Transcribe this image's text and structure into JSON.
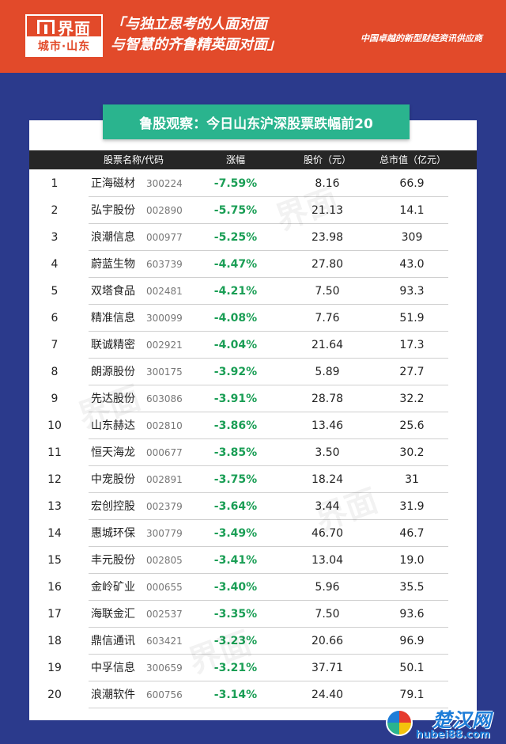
{
  "header": {
    "logo_name": "界面",
    "logo_sub": "城市·山东",
    "slogan_line1": "「与独立思考的人面对面",
    "slogan_line2": "与智慧的齐鲁精英面对面」",
    "tagline": "中国卓越的新型财经资讯供应商"
  },
  "title": "鲁股观察：今日山东沪深股票跌幅前20",
  "columns": {
    "name": "股票名称/代码",
    "change": "涨幅",
    "price": "股价（元）",
    "market_cap": "总市值（亿元）"
  },
  "rows": [
    {
      "rank": "1",
      "name": "正海磁材",
      "code": "300224",
      "change": "-7.59%",
      "price": "8.16",
      "cap": "66.9"
    },
    {
      "rank": "2",
      "name": "弘宇股份",
      "code": "002890",
      "change": "-5.75%",
      "price": "21.13",
      "cap": "14.1"
    },
    {
      "rank": "3",
      "name": "浪潮信息",
      "code": "000977",
      "change": "-5.25%",
      "price": "23.98",
      "cap": "309"
    },
    {
      "rank": "4",
      "name": "蔚蓝生物",
      "code": "603739",
      "change": "-4.47%",
      "price": "27.80",
      "cap": "43.0"
    },
    {
      "rank": "5",
      "name": "双塔食品",
      "code": "002481",
      "change": "-4.21%",
      "price": "7.50",
      "cap": "93.3"
    },
    {
      "rank": "6",
      "name": "精准信息",
      "code": "300099",
      "change": "-4.08%",
      "price": "7.76",
      "cap": "51.9"
    },
    {
      "rank": "7",
      "name": "联诚精密",
      "code": "002921",
      "change": "-4.04%",
      "price": "21.64",
      "cap": "17.3"
    },
    {
      "rank": "8",
      "name": "朗源股份",
      "code": "300175",
      "change": "-3.92%",
      "price": "5.89",
      "cap": "27.7"
    },
    {
      "rank": "9",
      "name": "先达股份",
      "code": "603086",
      "change": "-3.91%",
      "price": "28.78",
      "cap": "32.2"
    },
    {
      "rank": "10",
      "name": "山东赫达",
      "code": "002810",
      "change": "-3.86%",
      "price": "13.46",
      "cap": "25.6"
    },
    {
      "rank": "11",
      "name": "恒天海龙",
      "code": "000677",
      "change": "-3.85%",
      "price": "3.50",
      "cap": "30.2"
    },
    {
      "rank": "12",
      "name": "中宠股份",
      "code": "002891",
      "change": "-3.75%",
      "price": "18.24",
      "cap": "31"
    },
    {
      "rank": "13",
      "name": "宏创控股",
      "code": "002379",
      "change": "-3.64%",
      "price": "3.44",
      "cap": "31.9"
    },
    {
      "rank": "14",
      "name": "惠城环保",
      "code": "300779",
      "change": "-3.49%",
      "price": "46.70",
      "cap": "46.7"
    },
    {
      "rank": "15",
      "name": "丰元股份",
      "code": "002805",
      "change": "-3.41%",
      "price": "13.04",
      "cap": "19.0"
    },
    {
      "rank": "16",
      "name": "金岭矿业",
      "code": "000655",
      "change": "-3.40%",
      "price": "5.96",
      "cap": "35.5"
    },
    {
      "rank": "17",
      "name": "海联金汇",
      "code": "002537",
      "change": "-3.35%",
      "price": "7.50",
      "cap": "93.6"
    },
    {
      "rank": "18",
      "name": "鼎信通讯",
      "code": "603421",
      "change": "-3.23%",
      "price": "20.66",
      "cap": "96.9"
    },
    {
      "rank": "19",
      "name": "中孚信息",
      "code": "300659",
      "change": "-3.21%",
      "price": "37.71",
      "cap": "50.1"
    },
    {
      "rank": "20",
      "name": "浪潮软件",
      "code": "600756",
      "change": "-3.14%",
      "price": "24.40",
      "cap": "79.1"
    }
  ],
  "footer_logo": {
    "name": "楚汉网",
    "url": "hubei88.com"
  },
  "colors": {
    "banner": "#e24a2a",
    "background": "#2b3a8c",
    "title_bg": "#2ab48e",
    "negative": "#1a9e55"
  }
}
